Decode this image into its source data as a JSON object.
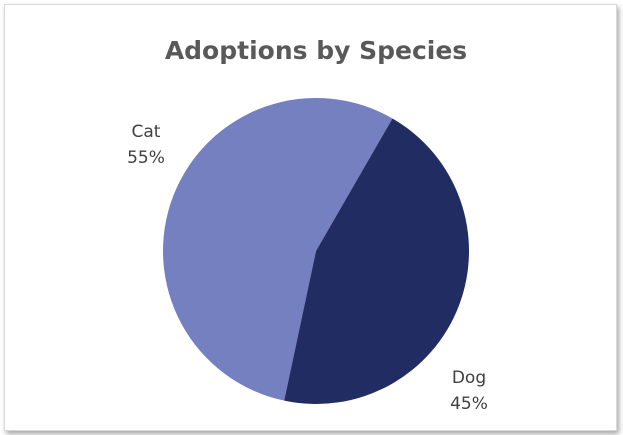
{
  "chart_data": {
    "type": "pie",
    "title": "Adoptions by Species",
    "slices": [
      {
        "label": "Cat",
        "value": 55,
        "display": "55%",
        "color": "#7480c0"
      },
      {
        "label": "Dog",
        "value": 45,
        "display": "45%",
        "color": "#212c63"
      }
    ],
    "legend": "none",
    "data_labels": "outside, category and percentage"
  }
}
